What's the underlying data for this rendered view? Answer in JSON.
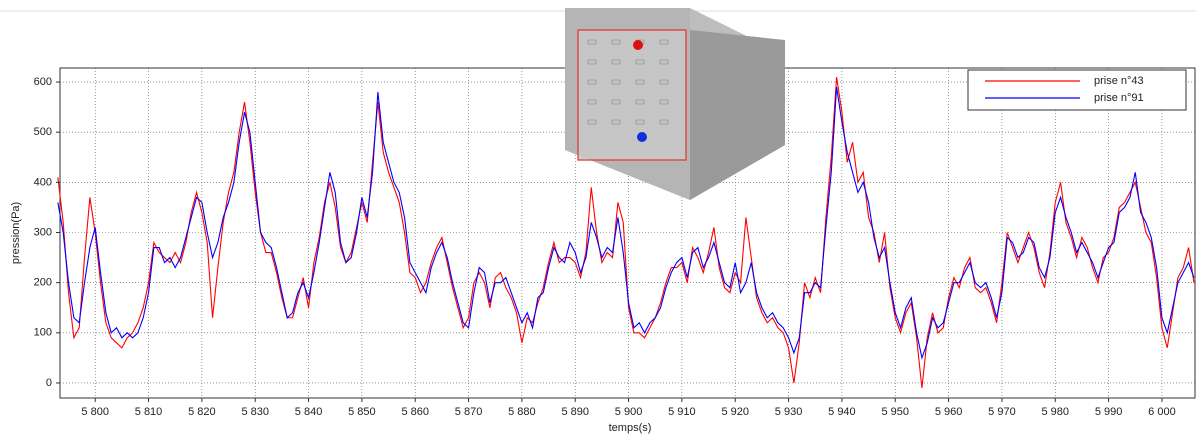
{
  "chart_data": {
    "type": "line",
    "xlabel": "temps(s)",
    "ylabel": "pression(Pa)",
    "xlim": [
      5793.4,
      6006.2
    ],
    "ylim": [
      -30,
      628
    ],
    "xticks": [
      {
        "value": 5800,
        "label": "5 800"
      },
      {
        "value": 5810,
        "label": "5 810"
      },
      {
        "value": 5820,
        "label": "5 820"
      },
      {
        "value": 5830,
        "label": "5 830"
      },
      {
        "value": 5840,
        "label": "5 840"
      },
      {
        "value": 5850,
        "label": "5 850"
      },
      {
        "value": 5860,
        "label": "5 860"
      },
      {
        "value": 5870,
        "label": "5 870"
      },
      {
        "value": 5880,
        "label": "5 880"
      },
      {
        "value": 5890,
        "label": "5 890"
      },
      {
        "value": 5900,
        "label": "5 900"
      },
      {
        "value": 5910,
        "label": "5 910"
      },
      {
        "value": 5920,
        "label": "5 920"
      },
      {
        "value": 5930,
        "label": "5 930"
      },
      {
        "value": 5940,
        "label": "5 940"
      },
      {
        "value": 5950,
        "label": "5 950"
      },
      {
        "value": 5960,
        "label": "5 960"
      },
      {
        "value": 5970,
        "label": "5 970"
      },
      {
        "value": 5980,
        "label": "5 980"
      },
      {
        "value": 5990,
        "label": "5 990"
      },
      {
        "value": 6000,
        "label": "6 000"
      }
    ],
    "yticks": [
      0,
      100,
      200,
      300,
      400,
      500,
      600
    ],
    "grid": true,
    "legend": "upper right",
    "x": [
      5793,
      5794,
      5795,
      5796,
      5797,
      5798,
      5799,
      5800,
      5801,
      5802,
      5803,
      5804,
      5805,
      5806,
      5807,
      5808,
      5809,
      5810,
      5811,
      5812,
      5813,
      5814,
      5815,
      5816,
      5817,
      5818,
      5819,
      5820,
      5821,
      5822,
      5823,
      5824,
      5825,
      5826,
      5827,
      5828,
      5829,
      5830,
      5831,
      5832,
      5833,
      5834,
      5835,
      5836,
      5837,
      5838,
      5839,
      5840,
      5841,
      5842,
      5843,
      5844,
      5845,
      5846,
      5847,
      5848,
      5849,
      5850,
      5851,
      5852,
      5853,
      5854,
      5855,
      5856,
      5857,
      5858,
      5859,
      5860,
      5861,
      5862,
      5863,
      5864,
      5865,
      5866,
      5867,
      5868,
      5869,
      5870,
      5871,
      5872,
      5873,
      5874,
      5875,
      5876,
      5877,
      5878,
      5879,
      5880,
      5881,
      5882,
      5883,
      5884,
      5885,
      5886,
      5887,
      5888,
      5889,
      5890,
      5891,
      5892,
      5893,
      5894,
      5895,
      5896,
      5897,
      5898,
      5899,
      5900,
      5901,
      5902,
      5903,
      5904,
      5905,
      5906,
      5907,
      5908,
      5909,
      5910,
      5911,
      5912,
      5913,
      5914,
      5915,
      5916,
      5917,
      5918,
      5919,
      5920,
      5921,
      5922,
      5923,
      5924,
      5925,
      5926,
      5927,
      5928,
      5929,
      5930,
      5931,
      5932,
      5933,
      5934,
      5935,
      5936,
      5937,
      5938,
      5939,
      5940,
      5941,
      5942,
      5943,
      5944,
      5945,
      5946,
      5947,
      5948,
      5949,
      5950,
      5951,
      5952,
      5953,
      5954,
      5955,
      5956,
      5957,
      5958,
      5959,
      5960,
      5961,
      5962,
      5963,
      5964,
      5965,
      5966,
      5967,
      5968,
      5969,
      5970,
      5971,
      5972,
      5973,
      5974,
      5975,
      5976,
      5977,
      5978,
      5979,
      5980,
      5981,
      5982,
      5983,
      5984,
      5985,
      5986,
      5987,
      5988,
      5989,
      5990,
      5991,
      5992,
      5993,
      5994,
      5995,
      5996,
      5997,
      5998,
      5999,
      6000,
      6001,
      6002,
      6003,
      6004,
      6005,
      6006
    ],
    "series": [
      {
        "name": "prise n°43",
        "color": "#ff0000",
        "values": [
          410,
          320,
          180,
          90,
          110,
          250,
          370,
          300,
          200,
          120,
          90,
          80,
          70,
          90,
          100,
          120,
          150,
          200,
          280,
          260,
          250,
          240,
          260,
          240,
          280,
          340,
          380,
          340,
          280,
          130,
          230,
          320,
          380,
          420,
          500,
          560,
          480,
          380,
          300,
          260,
          260,
          220,
          170,
          130,
          130,
          170,
          210,
          150,
          240,
          290,
          360,
          400,
          350,
          270,
          240,
          260,
          310,
          360,
          320,
          440,
          560,
          460,
          420,
          390,
          360,
          300,
          220,
          210,
          180,
          200,
          240,
          270,
          290,
          240,
          190,
          150,
          110,
          130,
          200,
          220,
          200,
          150,
          210,
          220,
          190,
          170,
          140,
          80,
          130,
          120,
          160,
          190,
          240,
          280,
          240,
          250,
          250,
          240,
          210,
          260,
          390,
          300,
          240,
          260,
          250,
          360,
          320,
          150,
          100,
          100,
          90,
          110,
          130,
          160,
          200,
          230,
          230,
          240,
          200,
          270,
          250,
          220,
          260,
          310,
          230,
          190,
          180,
          220,
          200,
          330,
          250,
          170,
          140,
          120,
          130,
          110,
          100,
          70,
          0,
          80,
          200,
          170,
          210,
          180,
          330,
          450,
          610,
          540,
          440,
          480,
          400,
          420,
          330,
          300,
          240,
          300,
          190,
          130,
          100,
          140,
          160,
          90,
          -10,
          90,
          140,
          100,
          110,
          170,
          210,
          190,
          230,
          250,
          190,
          180,
          190,
          160,
          120,
          200,
          300,
          270,
          240,
          270,
          300,
          270,
          220,
          190,
          260,
          360,
          400,
          320,
          290,
          250,
          290,
          270,
          230,
          200,
          250,
          260,
          290,
          350,
          360,
          380,
          400,
          350,
          300,
          280,
          210,
          110,
          70,
          140,
          210,
          230,
          270,
          200
        ]
      },
      {
        "name": "prise n°91",
        "color": "#0000ff",
        "values": [
          360,
          300,
          200,
          130,
          120,
          200,
          270,
          310,
          220,
          140,
          100,
          110,
          90,
          100,
          90,
          100,
          130,
          180,
          270,
          270,
          240,
          250,
          230,
          250,
          290,
          330,
          370,
          360,
          300,
          250,
          280,
          330,
          360,
          400,
          480,
          540,
          500,
          400,
          300,
          280,
          270,
          230,
          180,
          130,
          140,
          180,
          200,
          170,
          220,
          280,
          350,
          420,
          380,
          280,
          240,
          250,
          300,
          370,
          330,
          420,
          580,
          480,
          440,
          400,
          380,
          330,
          240,
          220,
          200,
          180,
          230,
          260,
          280,
          250,
          200,
          160,
          120,
          110,
          180,
          230,
          220,
          160,
          200,
          200,
          210,
          180,
          150,
          120,
          140,
          110,
          170,
          180,
          230,
          270,
          250,
          240,
          280,
          260,
          220,
          250,
          320,
          290,
          250,
          270,
          260,
          330,
          260,
          160,
          110,
          120,
          100,
          120,
          130,
          150,
          190,
          220,
          240,
          250,
          210,
          260,
          270,
          230,
          250,
          280,
          240,
          200,
          190,
          240,
          180,
          200,
          240,
          180,
          150,
          130,
          140,
          120,
          110,
          90,
          60,
          90,
          180,
          180,
          200,
          190,
          310,
          420,
          590,
          520,
          460,
          420,
          380,
          400,
          360,
          290,
          250,
          270,
          200,
          140,
          110,
          150,
          170,
          100,
          50,
          80,
          130,
          110,
          120,
          160,
          200,
          200,
          220,
          240,
          200,
          190,
          200,
          170,
          130,
          180,
          290,
          280,
          250,
          260,
          290,
          280,
          230,
          210,
          250,
          340,
          370,
          330,
          300,
          260,
          280,
          260,
          240,
          210,
          240,
          270,
          280,
          340,
          350,
          370,
          420,
          340,
          320,
          290,
          230,
          130,
          100,
          150,
          200,
          220,
          240,
          210
        ]
      }
    ]
  }
}
